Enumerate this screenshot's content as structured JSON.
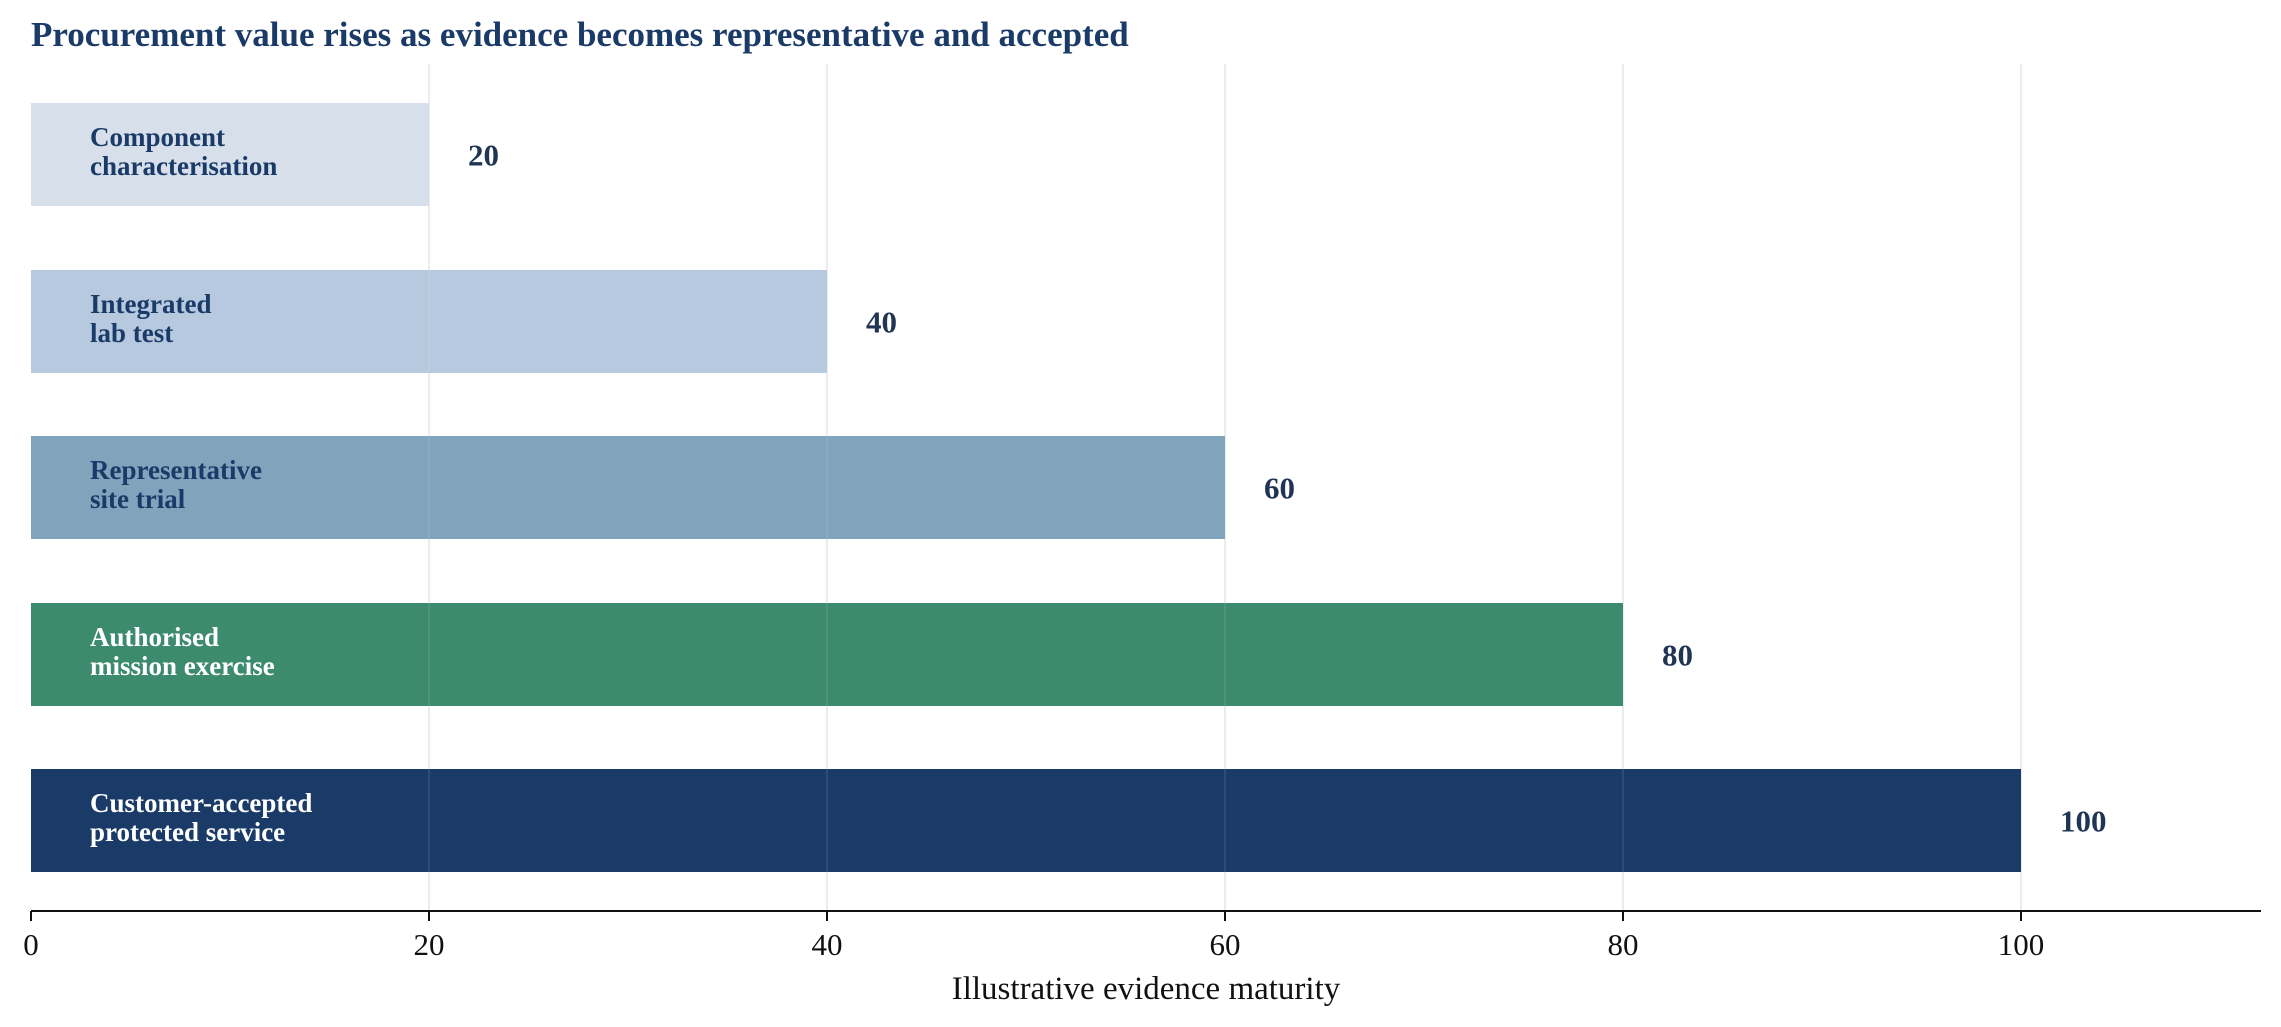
{
  "chart_data": {
    "type": "bar",
    "orientation": "horizontal",
    "title": "Procurement value rises as evidence becomes representative and accepted",
    "xlabel": "Illustrative evidence maturity",
    "ylabel": "",
    "xlim": [
      0,
      112
    ],
    "xticks": [
      0,
      20,
      40,
      60,
      80,
      100
    ],
    "xtick_labels": [
      "0",
      "20",
      "40",
      "60",
      "80",
      "100"
    ],
    "grid": "vertical",
    "categories": [
      [
        "Component",
        "characterisation"
      ],
      [
        "Integrated",
        "lab test"
      ],
      [
        "Representative",
        "site trial"
      ],
      [
        "Authorised",
        "mission exercise"
      ],
      [
        "Customer-accepted",
        "protected service"
      ]
    ],
    "values": [
      20,
      40,
      60,
      80,
      100
    ],
    "value_labels": [
      "20",
      "40",
      "60",
      "80",
      "100"
    ],
    "bar_colors": [
      "#d7e0ea",
      "#b7c9de",
      "#7fa4bb",
      "#3d8b6e",
      "#1a3a68"
    ],
    "bar_label_colors": [
      "#1a3a68",
      "#1a3a68",
      "#1a3a68",
      "#ffffff",
      "#ffffff"
    ]
  }
}
